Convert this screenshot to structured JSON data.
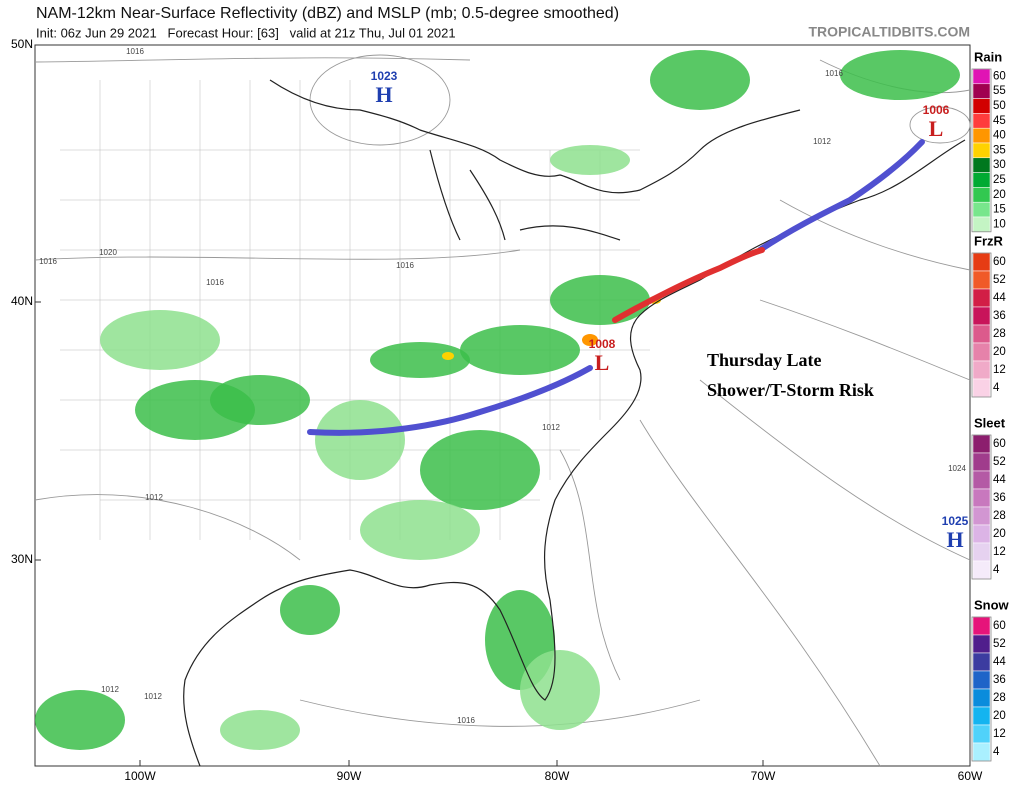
{
  "header": {
    "title": "NAM-12km Near-Surface Reflectivity (dBZ) and MSLP (mb; 0.5-degree smoothed)",
    "subtitle": "Init: 06z Jun 29 2021   Forecast Hour: [63]   valid at 21z Thu, Jul 01 2021",
    "source": "TROPICALTIDBITS.COM"
  },
  "map": {
    "lat_labels": [
      "50N",
      "40N",
      "30N"
    ],
    "lon_labels": [
      "100W",
      "90W",
      "80W",
      "70W",
      "60W"
    ],
    "pressure_centers": [
      {
        "value": "1023",
        "type": "H",
        "color": "#1f3fb0"
      },
      {
        "value": "1008",
        "type": "L",
        "color": "#c81e1e"
      },
      {
        "value": "1006",
        "type": "L",
        "color": "#c81e1e"
      },
      {
        "value": "1025",
        "type": "H",
        "color": "#1f3fb0"
      }
    ],
    "isobar_labels": [
      "1016",
      "1016",
      "1016",
      "1016",
      "1020",
      "1016",
      "1012",
      "1012",
      "1012",
      "1012",
      "1012",
      "1024",
      "1016"
    ],
    "annotation": [
      "Thursday Late",
      "Shower/T-Storm Risk"
    ]
  },
  "legends": [
    {
      "title": "Rain",
      "levels": [
        60,
        55,
        50,
        45,
        40,
        35,
        30,
        25,
        20,
        15,
        10
      ],
      "colors": [
        "#e014b4",
        "#a00050",
        "#d20000",
        "#ff3c3c",
        "#ff9600",
        "#ffd200",
        "#00781e",
        "#00aa32",
        "#32c850",
        "#78e68c",
        "#c4f4c4"
      ]
    },
    {
      "title": "FrzR",
      "levels": [
        60,
        52,
        44,
        36,
        28,
        20,
        12,
        4
      ],
      "colors": [
        "#e63c14",
        "#f05a28",
        "#d21e46",
        "#c8145a",
        "#dc5a8c",
        "#e682aa",
        "#f0aac8",
        "#fad2e6"
      ]
    },
    {
      "title": "Sleet",
      "levels": [
        60,
        52,
        44,
        36,
        28,
        20,
        12,
        4
      ],
      "colors": [
        "#8c1e6e",
        "#a03c8c",
        "#b45aa5",
        "#c878be",
        "#d296d2",
        "#dcb4e6",
        "#e6d2f0",
        "#f5ebfa"
      ]
    },
    {
      "title": "Snow",
      "levels": [
        60,
        52,
        44,
        36,
        28,
        20,
        12,
        4
      ],
      "colors": [
        "#e6147a",
        "#501e8c",
        "#3c3ca0",
        "#1e64c8",
        "#0a8cdc",
        "#14b4f0",
        "#50d2fa",
        "#aaf0ff"
      ]
    }
  ]
}
